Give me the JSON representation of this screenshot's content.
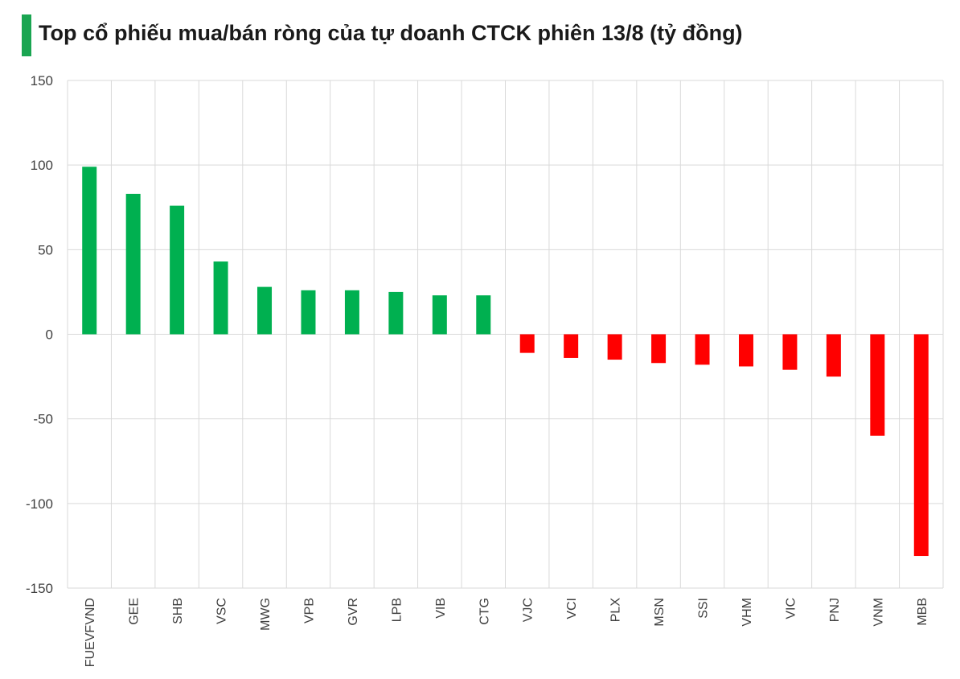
{
  "title": "Top cổ phiếu mua/bán ròng của tự doanh CTCK phiên 13/8 (tỷ đồng)",
  "colors": {
    "positive": "#00b050",
    "negative": "#ff0000",
    "accent": "#1aa551",
    "grid": "#d9d9d9"
  },
  "chart_data": {
    "type": "bar",
    "title": "Top cổ phiếu mua/bán ròng của tự doanh CTCK phiên 13/8 (tỷ đồng)",
    "xlabel": "",
    "ylabel": "",
    "ylim": [
      -150,
      150
    ],
    "yticks": [
      "150",
      "100",
      "50",
      "0",
      "-50",
      "-100",
      "-150"
    ],
    "categories": [
      "FUEVFVND",
      "GEE",
      "SHB",
      "VSC",
      "MWG",
      "VPB",
      "GVR",
      "LPB",
      "VIB",
      "CTG",
      "VJC",
      "VCI",
      "PLX",
      "MSN",
      "SSI",
      "VHM",
      "VIC",
      "PNJ",
      "VNM",
      "MBB"
    ],
    "values": [
      99,
      83,
      76,
      43,
      28,
      26,
      26,
      25,
      23,
      23,
      -11,
      -14,
      -15,
      -17,
      -18,
      -19,
      -21,
      -25,
      -60,
      -131
    ],
    "grid": true,
    "legend": "none"
  }
}
